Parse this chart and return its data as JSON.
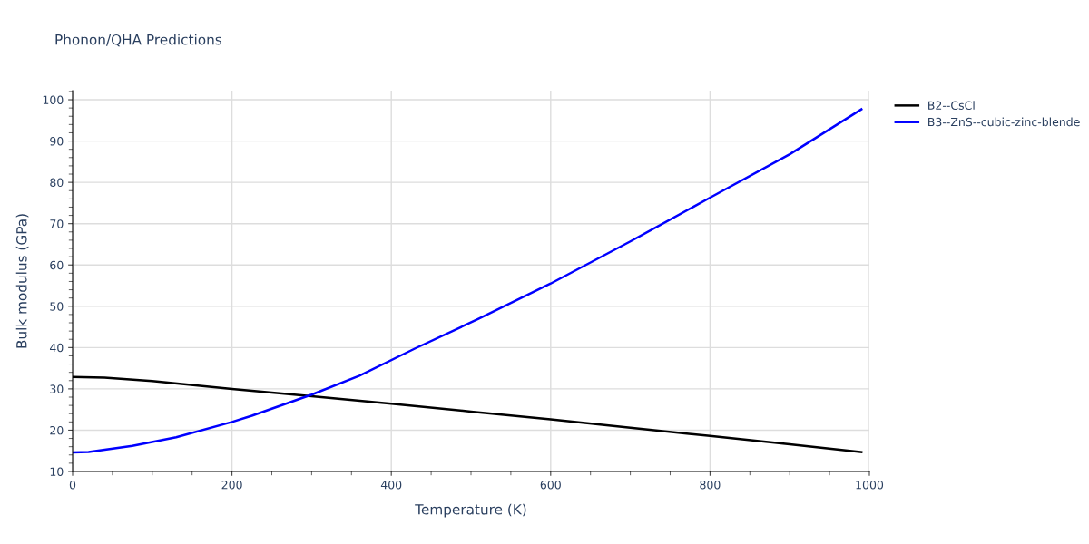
{
  "chart_data": {
    "type": "line",
    "title": "Phonon/QHA Predictions",
    "xlabel": "Temperature (K)",
    "ylabel": "Bulk modulus (GPa)",
    "xlim": [
      0,
      1000
    ],
    "xticks": [
      0,
      200,
      400,
      600,
      800,
      1000
    ],
    "ylim": [
      10,
      102.2
    ],
    "yticks": [
      10,
      20,
      30,
      40,
      50,
      60,
      70,
      80,
      90,
      100
    ],
    "grid": true,
    "legend": "top right",
    "marker": "none",
    "line_style": "solid",
    "series": [
      {
        "name": "B2--CsCl",
        "color": "#000000",
        "x": [
          0,
          40,
          100,
          200,
          300,
          400,
          500,
          600,
          700,
          800,
          900,
          990
        ],
        "values": [
          32.9,
          32.7,
          31.9,
          30.0,
          28.2,
          26.4,
          24.5,
          22.6,
          20.6,
          18.6,
          16.6,
          14.7
        ]
      },
      {
        "name": "B3--ZnS--cubic-zinc-blende",
        "color": "#0000ff",
        "x": [
          0,
          20,
          75,
          130,
          200,
          225,
          300,
          360,
          430,
          510,
          600,
          700,
          800,
          900,
          990
        ],
        "values": [
          14.6,
          14.7,
          16.2,
          18.3,
          22.0,
          23.5,
          28.6,
          33.2,
          39.8,
          47.0,
          55.5,
          65.7,
          76.3,
          86.8,
          97.7
        ]
      }
    ]
  }
}
